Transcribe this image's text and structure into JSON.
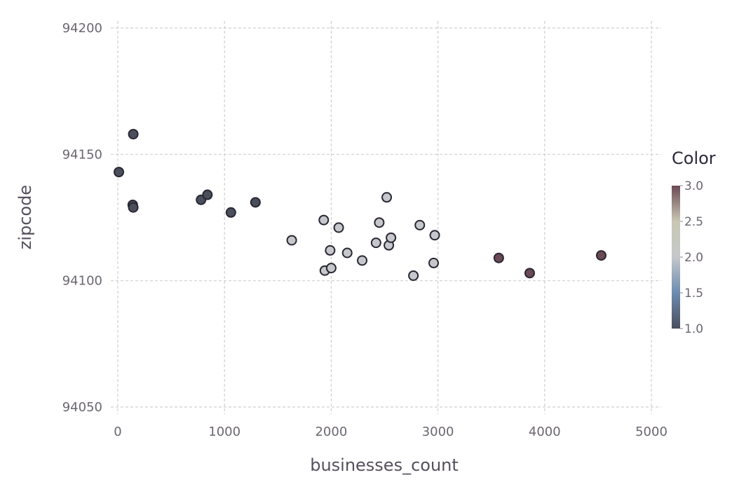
{
  "chart_data": {
    "type": "scatter",
    "title": "",
    "xlabel": "businesses_count",
    "ylabel": "zipcode",
    "xlim": [
      0,
      5000
    ],
    "ylim": [
      94050,
      94200
    ],
    "x_ticks": [
      "0",
      "1000",
      "2000",
      "3000",
      "4000",
      "5000"
    ],
    "y_ticks": [
      "94050",
      "94100",
      "94150",
      "94200"
    ],
    "grid": true,
    "legend": {
      "title": "Color",
      "placement": "right",
      "type": "colorbar",
      "range": [
        1.0,
        3.0
      ],
      "ticks": [
        "1.0",
        "1.5",
        "2.0",
        "2.5",
        "3.0"
      ],
      "stops": [
        {
          "value": 1.0,
          "color": "#4a4f5c"
        },
        {
          "value": 1.5,
          "color": "#6c8bb0"
        },
        {
          "value": 2.0,
          "color": "#c4c8ca"
        },
        {
          "value": 2.5,
          "color": "#c9c7b4"
        },
        {
          "value": 3.0,
          "color": "#6b4a55"
        }
      ]
    },
    "points": [
      {
        "x": 10,
        "y": 94143,
        "color": 1
      },
      {
        "x": 145,
        "y": 94158,
        "color": 1
      },
      {
        "x": 140,
        "y": 94130,
        "color": 1
      },
      {
        "x": 145,
        "y": 94129,
        "color": 1
      },
      {
        "x": 780,
        "y": 94132,
        "color": 1
      },
      {
        "x": 840,
        "y": 94134,
        "color": 1
      },
      {
        "x": 1060,
        "y": 94127,
        "color": 1
      },
      {
        "x": 1290,
        "y": 94131,
        "color": 1
      },
      {
        "x": 1630,
        "y": 94116,
        "color": 2
      },
      {
        "x": 1930,
        "y": 94124,
        "color": 2
      },
      {
        "x": 1940,
        "y": 94104,
        "color": 2
      },
      {
        "x": 1990,
        "y": 94112,
        "color": 2
      },
      {
        "x": 2000,
        "y": 94105,
        "color": 2
      },
      {
        "x": 2070,
        "y": 94121,
        "color": 2
      },
      {
        "x": 2150,
        "y": 94111,
        "color": 2
      },
      {
        "x": 2290,
        "y": 94108,
        "color": 2
      },
      {
        "x": 2420,
        "y": 94115,
        "color": 2
      },
      {
        "x": 2450,
        "y": 94123,
        "color": 2
      },
      {
        "x": 2520,
        "y": 94133,
        "color": 2
      },
      {
        "x": 2540,
        "y": 94114,
        "color": 2
      },
      {
        "x": 2560,
        "y": 94117,
        "color": 2
      },
      {
        "x": 2770,
        "y": 94102,
        "color": 2
      },
      {
        "x": 2830,
        "y": 94122,
        "color": 2
      },
      {
        "x": 2960,
        "y": 94107,
        "color": 2
      },
      {
        "x": 2970,
        "y": 94118,
        "color": 2
      },
      {
        "x": 3570,
        "y": 94109,
        "color": 3
      },
      {
        "x": 3860,
        "y": 94103,
        "color": 3
      },
      {
        "x": 4530,
        "y": 94110,
        "color": 3
      }
    ]
  }
}
